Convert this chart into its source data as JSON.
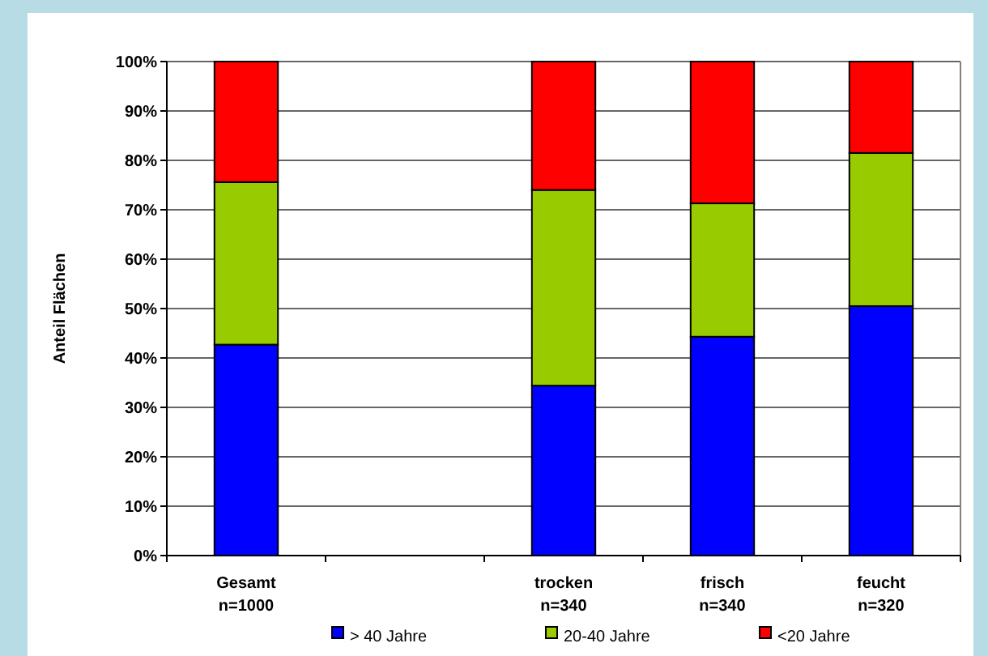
{
  "chart_data": {
    "type": "bar",
    "stacked": true,
    "ylabel": "Anteil Flächen",
    "categories": [
      "Gesamt\nn=1000",
      null,
      "trocken\nn=340",
      "frisch\nn=340",
      "feucht\nn=320"
    ],
    "series": [
      {
        "name": "> 40 Jahre",
        "color": "#0000ff",
        "values": [
          42.7,
          null,
          34.4,
          44.3,
          50.5
        ]
      },
      {
        "name": "20-40 Jahre",
        "color": "#99cc00",
        "values": [
          32.9,
          null,
          39.6,
          27.0,
          31.0
        ]
      },
      {
        "name": "<20 Jahre",
        "color": "#ff0000",
        "values": [
          24.4,
          null,
          26.0,
          28.7,
          18.5
        ]
      }
    ],
    "ylim": [
      0,
      100
    ],
    "yticks": [
      {
        "value": 0,
        "label": "0%"
      },
      {
        "value": 10,
        "label": "10%"
      },
      {
        "value": 20,
        "label": "20%"
      },
      {
        "value": 30,
        "label": "30%"
      },
      {
        "value": 40,
        "label": "40%"
      },
      {
        "value": 50,
        "label": "50%"
      },
      {
        "value": 60,
        "label": "60%"
      },
      {
        "value": 70,
        "label": "70%"
      },
      {
        "value": 80,
        "label": "80%"
      },
      {
        "value": 90,
        "label": "90%"
      },
      {
        "value": 100,
        "label": "100%"
      }
    ],
    "grid": "y",
    "legend": "bottom"
  }
}
